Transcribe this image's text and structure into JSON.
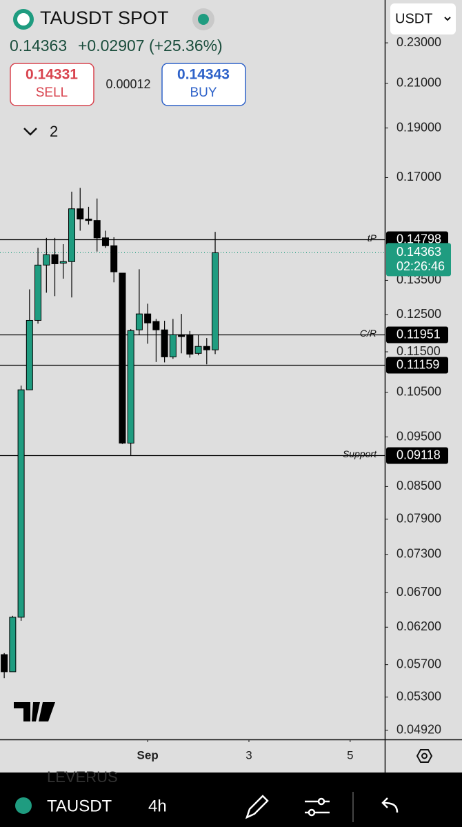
{
  "header": {
    "symbol": "TAUSDT SPOT",
    "last": "0.14363",
    "change": "+0.02907 (+25.36%)",
    "sell_price": "0.14331",
    "sell": "SELL",
    "spread": "0.00012",
    "buy_price": "0.14343",
    "buy": "BUY",
    "indicators": "2",
    "currency": "USDT"
  },
  "chart_data": {
    "type": "candlestick",
    "log_scale": true,
    "up_color": "#1f9c80",
    "down_color": "#000000",
    "x": [
      0,
      1,
      2,
      3,
      4,
      5,
      6,
      7,
      8,
      9,
      10,
      11,
      12,
      13,
      14,
      15,
      16,
      17,
      18,
      19,
      20,
      21,
      22,
      23,
      24,
      25
    ],
    "open": [
      0.0583,
      0.0561,
      0.0634,
      0.1056,
      0.1234,
      0.1397,
      0.143,
      0.1403,
      0.1408,
      0.1585,
      0.1549,
      0.1544,
      0.1485,
      0.1459,
      0.1372,
      0.0937,
      0.1208,
      0.1252,
      0.1231,
      0.1208,
      0.1137,
      0.1195,
      0.1195,
      0.1146,
      0.1164,
      0.1155
    ],
    "high": [
      0.0585,
      0.0636,
      0.1066,
      0.1323,
      0.1452,
      0.1485,
      0.1485,
      0.1464,
      0.1647,
      0.1661,
      0.1592,
      0.1622,
      0.1509,
      0.1487,
      0.1372,
      0.121,
      0.1384,
      0.1281,
      0.1238,
      0.1233,
      0.1238,
      0.1252,
      0.1205,
      0.1195,
      0.1186,
      0.1505
    ],
    "low": [
      0.0553,
      0.0561,
      0.0629,
      0.1056,
      0.1225,
      0.1313,
      0.1303,
      0.1355,
      0.1299,
      0.1509,
      0.153,
      0.144,
      0.1452,
      0.1344,
      0.0935,
      0.0912,
      0.1195,
      0.1171,
      0.1124,
      0.1123,
      0.1132,
      0.1146,
      0.1135,
      0.1141,
      0.1118,
      0.1144
    ],
    "close": [
      0.0561,
      0.0634,
      0.1056,
      0.1234,
      0.1397,
      0.143,
      0.1401,
      0.1408,
      0.1585,
      0.1549,
      0.1544,
      0.1485,
      0.1459,
      0.1376,
      0.0937,
      0.1206,
      0.1252,
      0.1227,
      0.1208,
      0.1137,
      0.1195,
      0.119,
      0.1144,
      0.1164,
      0.1155,
      0.14363
    ],
    "xlim": [
      -0.5,
      45.1
    ],
    "xticks": [
      {
        "value": 17,
        "label": "Sep"
      },
      {
        "value": 29,
        "label": "3"
      },
      {
        "value": 41,
        "label": "5"
      }
    ],
    "ylim": [
      0.0482,
      0.2532
    ],
    "yticks": [
      {
        "value": 0.23,
        "label": "0.23000"
      },
      {
        "value": 0.21,
        "label": "0.21000"
      },
      {
        "value": 0.19,
        "label": "0.19000"
      },
      {
        "value": 0.17,
        "label": "0.17000"
      },
      {
        "value": 0.135,
        "label": "0.13500"
      },
      {
        "value": 0.125,
        "label": "0.12500"
      },
      {
        "value": 0.115,
        "label": "0.11500"
      },
      {
        "value": 0.105,
        "label": "0.10500"
      },
      {
        "value": 0.095,
        "label": "0.09500"
      },
      {
        "value": 0.085,
        "label": "0.08500"
      },
      {
        "value": 0.079,
        "label": "0.07900"
      },
      {
        "value": 0.073,
        "label": "0.07300"
      },
      {
        "value": 0.067,
        "label": "0.06700"
      },
      {
        "value": 0.062,
        "label": "0.06200"
      },
      {
        "value": 0.057,
        "label": "0.05700"
      },
      {
        "value": 0.053,
        "label": "0.05300"
      },
      {
        "value": 0.0492,
        "label": "0.04920"
      }
    ],
    "levels": [
      {
        "name": "tP",
        "value": 0.14798
      },
      {
        "name": "C/R",
        "value": 0.11951
      },
      {
        "value": 0.11159
      },
      {
        "name": "Support",
        "value": 0.09118
      }
    ],
    "last_price": 0.14363,
    "countdown": "02:26:46"
  },
  "footer": {
    "symbol": "TAUSDT",
    "interval": "4h",
    "overlay": "LEVERUS"
  }
}
